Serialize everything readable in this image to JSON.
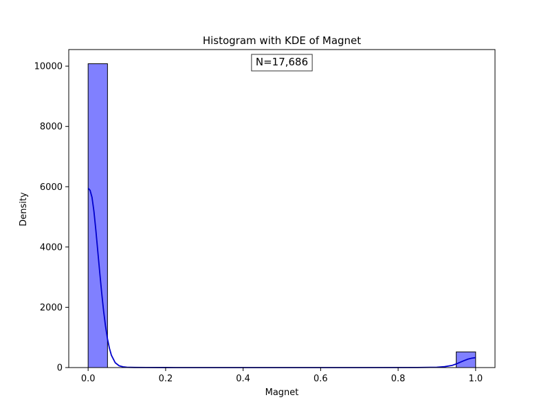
{
  "chart_data": {
    "type": "bar",
    "title": "Histogram with KDE of Magnet",
    "xlabel": "Magnet",
    "ylabel": "Density",
    "xlim": [
      -0.05,
      1.05
    ],
    "ylim": [
      0,
      10550
    ],
    "xticks": [
      0.0,
      0.2,
      0.4,
      0.6,
      0.8,
      1.0
    ],
    "xtick_labels": [
      "0.0",
      "0.2",
      "0.4",
      "0.6",
      "0.8",
      "1.0"
    ],
    "yticks": [
      0,
      2000,
      4000,
      6000,
      8000,
      10000
    ],
    "ytick_labels": [
      "0",
      "2000",
      "4000",
      "6000",
      "8000",
      "10000"
    ],
    "bins": [
      {
        "x0": 0.0,
        "x1": 0.05,
        "value": 10080
      },
      {
        "x0": 0.95,
        "x1": 1.0,
        "value": 520
      }
    ],
    "kde": {
      "x": [
        0.0,
        0.005,
        0.01,
        0.015,
        0.02,
        0.025,
        0.03,
        0.035,
        0.04,
        0.045,
        0.05,
        0.055,
        0.06,
        0.07,
        0.08,
        0.09,
        0.1,
        0.12,
        0.15,
        0.2,
        0.3,
        0.5,
        0.7,
        0.85,
        0.9,
        0.92,
        0.94,
        0.95,
        0.96,
        0.97,
        0.98,
        0.99,
        1.0
      ],
      "y": [
        5950,
        5880,
        5650,
        5180,
        4550,
        3850,
        3150,
        2480,
        1870,
        1360,
        950,
        640,
        410,
        160,
        60,
        25,
        10,
        4,
        2,
        1,
        0,
        0,
        0,
        2,
        12,
        30,
        75,
        120,
        175,
        230,
        280,
        310,
        330
      ]
    },
    "annotation": "N=17,686",
    "colors": {
      "bar_fill": "#8080ff",
      "bar_edge": "#000000",
      "kde": "#0000cc"
    },
    "grid": false,
    "legend": "none"
  }
}
